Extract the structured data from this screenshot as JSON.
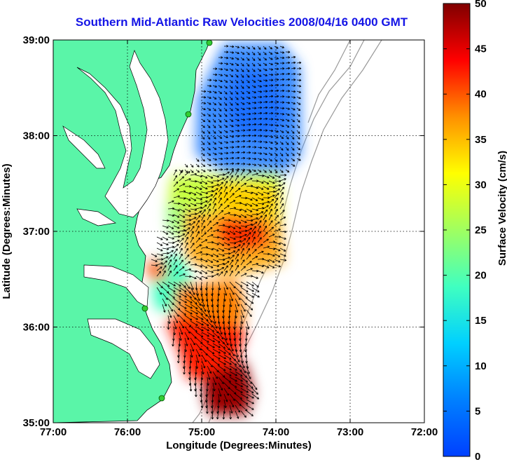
{
  "title": "Southern Mid-Atlantic Raw Velocities 2008/04/16 0400 GMT",
  "x_axis": {
    "label": "Longitude (Degrees:Minutes)",
    "ticks": [
      "77:00",
      "76:00",
      "75:00",
      "74:00",
      "73:00",
      "72:00"
    ],
    "range": [
      -77,
      -72
    ]
  },
  "y_axis": {
    "label": "Latitude (Degrees:Minutes)",
    "ticks": [
      "35:00",
      "36:00",
      "37:00",
      "38:00",
      "39:00"
    ],
    "range": [
      35,
      39
    ]
  },
  "colorbar": {
    "label": "Surface Velocity (cm/s)",
    "ticks": [
      "0",
      "5",
      "10",
      "15",
      "20",
      "25",
      "30",
      "35",
      "40",
      "45",
      "50"
    ],
    "range": [
      0,
      50
    ],
    "colormap": "jet"
  },
  "colors": {
    "land": "#5af5a8",
    "title": "#1414e6",
    "bathymetry": "#999999",
    "station": "#33cc33"
  },
  "grid": "dotted",
  "stations": 4
}
